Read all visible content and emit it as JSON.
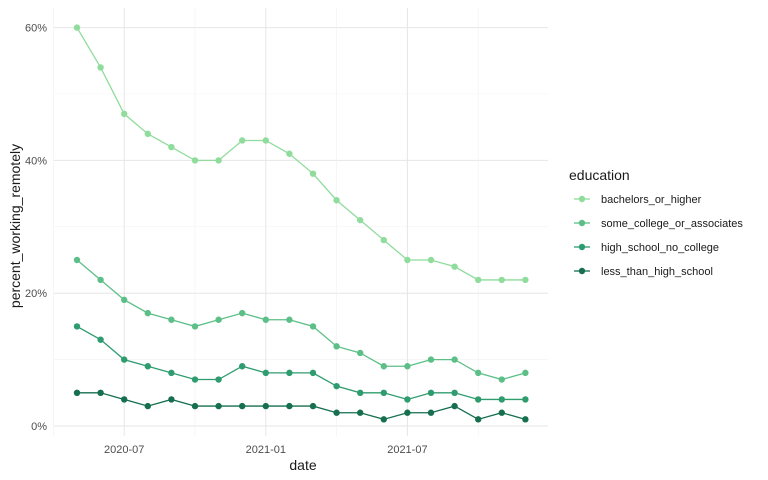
{
  "chart_data": {
    "type": "line",
    "xlabel": "date",
    "ylabel": "percent_working_remotely",
    "x_tick_labels": [
      "2020-07",
      "2021-01",
      "2021-07"
    ],
    "y_tick_labels": [
      "0%",
      "20%",
      "40%",
      "60%"
    ],
    "ylim": [
      0,
      60
    ],
    "grid": true,
    "legend": {
      "title": "education",
      "position": "right"
    },
    "x": [
      "2020-05",
      "2020-06",
      "2020-07",
      "2020-08",
      "2020-09",
      "2020-10",
      "2020-11",
      "2020-12",
      "2021-01",
      "2021-02",
      "2021-03",
      "2021-04",
      "2021-05",
      "2021-06",
      "2021-07",
      "2021-08",
      "2021-09",
      "2021-10",
      "2021-11",
      "2021-12"
    ],
    "series": [
      {
        "name": "bachelors_or_higher",
        "color": "#8fdc9c",
        "values": [
          60,
          54,
          47,
          44,
          42,
          40,
          40,
          43,
          43,
          41,
          38,
          34,
          31,
          28,
          25,
          25,
          24,
          22,
          22,
          22
        ]
      },
      {
        "name": "some_college_or_associates",
        "color": "#5cbf87",
        "values": [
          25,
          22,
          19,
          17,
          16,
          15,
          16,
          17,
          16,
          16,
          15,
          12,
          11,
          9,
          9,
          10,
          10,
          8,
          7,
          8
        ]
      },
      {
        "name": "high_school_no_college",
        "color": "#2e9c6f",
        "values": [
          15,
          13,
          10,
          9,
          8,
          7,
          7,
          9,
          8,
          8,
          8,
          6,
          5,
          5,
          4,
          5,
          5,
          4,
          4,
          4
        ]
      },
      {
        "name": "less_than_high_school",
        "color": "#166f4e",
        "values": [
          5,
          5,
          4,
          3,
          4,
          3,
          3,
          3,
          3,
          3,
          3,
          2,
          2,
          1,
          2,
          2,
          3,
          1,
          2,
          1
        ]
      }
    ]
  }
}
